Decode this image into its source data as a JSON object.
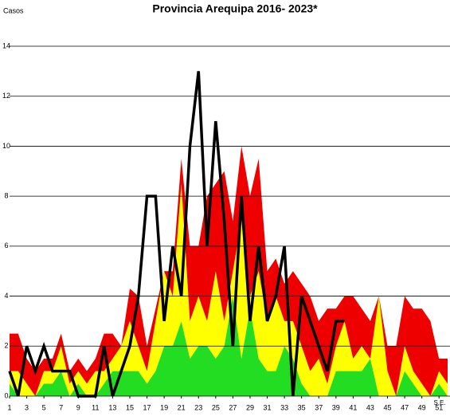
{
  "chart_data": {
    "type": "area",
    "title": "Provincia Arequipa  2016- 2023*",
    "y_label": "Casos",
    "x_label": "S.E.",
    "x": [
      1,
      2,
      3,
      4,
      5,
      6,
      7,
      8,
      9,
      10,
      11,
      12,
      13,
      14,
      15,
      16,
      17,
      18,
      19,
      20,
      21,
      22,
      23,
      24,
      25,
      26,
      27,
      28,
      29,
      30,
      31,
      32,
      33,
      34,
      35,
      36,
      37,
      38,
      39,
      40,
      41,
      42,
      43,
      44,
      45,
      46,
      47,
      48,
      49,
      50,
      51,
      52
    ],
    "xlim": [
      1,
      52
    ],
    "xticks": [
      1,
      3,
      5,
      7,
      9,
      11,
      13,
      15,
      17,
      19,
      21,
      23,
      25,
      27,
      29,
      31,
      33,
      35,
      37,
      39,
      41,
      43,
      45,
      47,
      49,
      51
    ],
    "ylim": [
      0,
      14
    ],
    "yticks": [
      0,
      2,
      4,
      6,
      8,
      10,
      12,
      14
    ],
    "grid": true,
    "series": [
      {
        "color": "#22dd22",
        "stacked": true,
        "values": [
          0.5,
          0,
          0,
          0,
          0.5,
          0.5,
          1,
          0,
          0.5,
          0,
          0,
          0.5,
          1,
          1,
          1,
          1,
          0.5,
          1,
          2,
          2,
          3,
          1.5,
          2,
          2,
          1.5,
          2,
          4,
          1.5,
          3.5,
          1.5,
          1,
          1,
          2,
          1.5,
          0.5,
          0,
          0,
          0,
          1,
          1,
          1,
          1,
          1.5,
          0,
          0,
          0,
          1,
          0.5,
          0,
          0,
          0.5,
          0
        ]
      },
      {
        "color": "#ffff00",
        "stacked": true,
        "values": [
          0.5,
          1,
          0.5,
          0,
          0.5,
          0.5,
          1,
          0.5,
          0.5,
          0.5,
          1,
          0.5,
          0.5,
          1,
          2,
          1,
          0.5,
          2,
          3,
          2,
          5.5,
          1.5,
          2,
          1,
          3.5,
          1,
          1,
          5.5,
          0.5,
          3.5,
          2,
          3,
          1,
          1.5,
          1.5,
          1,
          1.5,
          0.5,
          1,
          2,
          0.5,
          1,
          0,
          4,
          1,
          0,
          1,
          0.5,
          0.5,
          0,
          0.5,
          0.5
        ]
      },
      {
        "color": "#ee0000",
        "stacked": true,
        "values": [
          1.5,
          1.5,
          1,
          1,
          0.5,
          0.5,
          0.5,
          0.5,
          0.5,
          0.5,
          0.5,
          1.5,
          1,
          0,
          1.3,
          2,
          1,
          0.5,
          0,
          1,
          1,
          3,
          2,
          5,
          3.5,
          6,
          2,
          3,
          4,
          4.5,
          2,
          1.5,
          1.5,
          2,
          2.5,
          3,
          1.5,
          3,
          1.5,
          1,
          2.5,
          1.5,
          1.5,
          0,
          1,
          2,
          2,
          2.5,
          3,
          3,
          0.5,
          1
        ]
      },
      {
        "color": "#000000",
        "stacked": false,
        "values": [
          1,
          0,
          2,
          1,
          2,
          1,
          1,
          1,
          0,
          0,
          0,
          2,
          0,
          1,
          2,
          4,
          8,
          8,
          3,
          6,
          4,
          10,
          13,
          6,
          11,
          7,
          2,
          8,
          3,
          6,
          3,
          4,
          6,
          0,
          4,
          3,
          2,
          1,
          3,
          3,
          null,
          null,
          null,
          null,
          null,
          null,
          null,
          null,
          null,
          null,
          null,
          null
        ]
      }
    ]
  }
}
